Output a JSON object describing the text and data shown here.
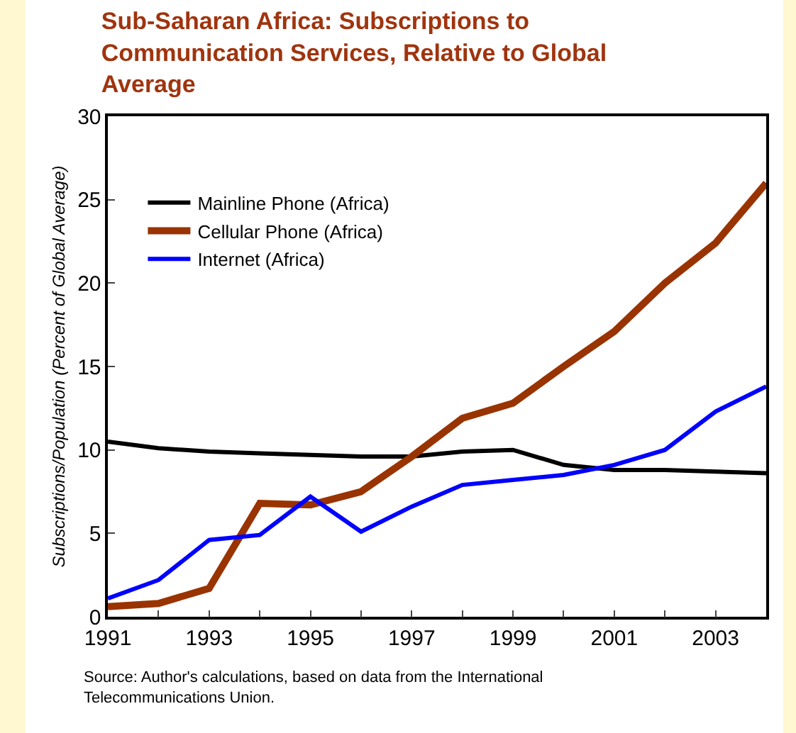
{
  "chart_data": {
    "type": "line",
    "title": "Sub-Saharan Africa: Subscriptions to Communication Services, Relative to Global Average",
    "ylabel": "Subscriptions/Population (Percent of Global Average)",
    "x": [
      1991,
      1992,
      1993,
      1994,
      1995,
      1996,
      1997,
      1998,
      1999,
      2000,
      2001,
      2002,
      2003,
      2004
    ],
    "series": [
      {
        "name": "Mainline Phone (Africa)",
        "color": "#000000",
        "values": [
          10.5,
          10.1,
          9.9,
          9.8,
          9.7,
          9.6,
          9.6,
          9.9,
          10.0,
          9.1,
          8.8,
          8.8,
          8.7,
          8.6
        ]
      },
      {
        "name": "Cellular Phone (Africa)",
        "color": "#993300",
        "values": [
          0.6,
          0.8,
          1.7,
          6.8,
          6.7,
          7.5,
          9.6,
          11.9,
          12.8,
          15.0,
          17.1,
          20.0,
          22.4,
          26.0
        ]
      },
      {
        "name": "Internet (Africa)",
        "color": "#0000ff",
        "values": [
          1.1,
          2.2,
          4.6,
          4.9,
          7.2,
          5.1,
          6.6,
          7.9,
          8.2,
          8.5,
          9.1,
          10.0,
          12.3,
          13.8
        ]
      }
    ],
    "xlim": [
      1991,
      2004
    ],
    "xticks": [
      1991,
      {
        "value": 1992,
        "label": null
      },
      1993,
      {
        "value": 1994,
        "label": null
      },
      1995,
      {
        "value": 1996,
        "label": null
      },
      1997,
      {
        "value": 1998,
        "label": null
      },
      1999,
      {
        "value": 2000,
        "label": null
      },
      2001,
      {
        "value": 2002,
        "label": null
      },
      2003,
      {
        "value": 2004,
        "label": null
      }
    ],
    "ylim": [
      0,
      30
    ],
    "yticks": [
      0,
      5,
      10,
      15,
      20,
      25,
      30
    ],
    "grid": false,
    "legend": "top left",
    "marker": "none",
    "line_style": "solid",
    "annotations": [
      "Source: Author's calculations, based on data from the International Telecommunications Union."
    ]
  }
}
